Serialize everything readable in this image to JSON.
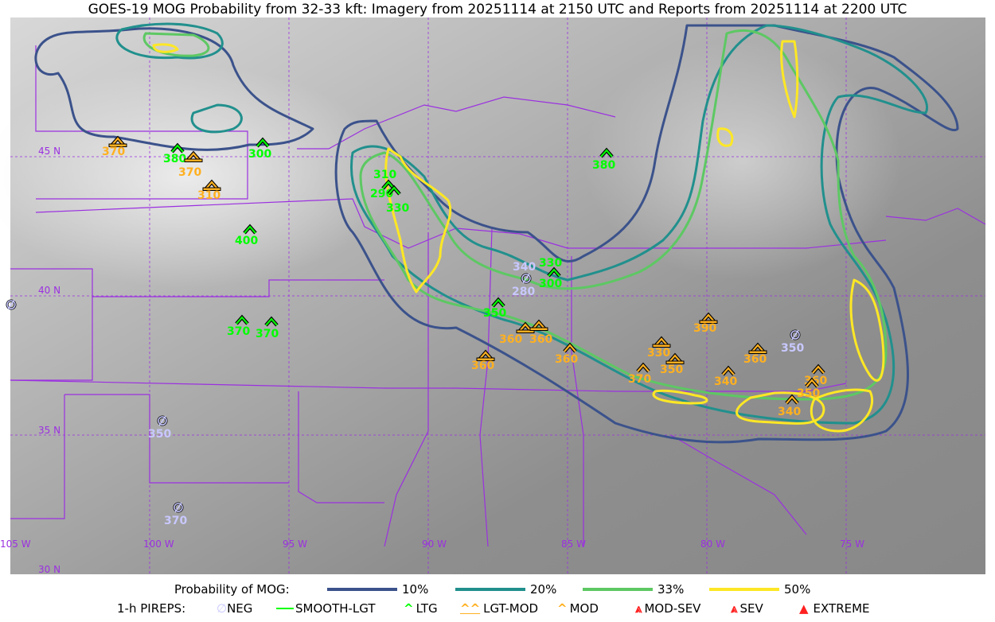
{
  "title": "GOES-19 MOG Probability from 32-33 kft: Imagery from 20251114 at 2150 UTC and Reports from 20251114 at 2200 UTC",
  "map": {
    "lat_labels": [
      "45 N",
      "40 N",
      "35 N",
      "30 N"
    ],
    "lon_labels": [
      "105 W",
      "100 W",
      "95 W",
      "90 W",
      "85 W",
      "80 W",
      "75 W"
    ],
    "graticule_color": "#9b30e0",
    "border_color": "#9b30e0"
  },
  "probability_legend": {
    "label": "Probability of MOG:",
    "levels": [
      {
        "label": "10%",
        "color": "#3b528b"
      },
      {
        "label": "20%",
        "color": "#21908d"
      },
      {
        "label": "33%",
        "color": "#5dc863"
      },
      {
        "label": "50%",
        "color": "#fde725"
      }
    ]
  },
  "pirep_legend": {
    "label": "1-h PIREPS:",
    "items": [
      {
        "label": "NEG",
        "icon": "neg-icon",
        "color": "#c8c8ff"
      },
      {
        "label": "SMOOTH-LGT",
        "icon": "line-icon",
        "color": "#00ff00"
      },
      {
        "label": "LTG",
        "icon": "chevron-icon",
        "color": "#00ff00"
      },
      {
        "label": "LGT-MOD",
        "icon": "lgt-mod-icon",
        "color": "#ffb020"
      },
      {
        "label": "MOD",
        "icon": "chevron-icon",
        "color": "#ffb020"
      },
      {
        "label": "MOD-SEV",
        "icon": "mod-sev-icon",
        "color": "#ff2020"
      },
      {
        "label": "SEV",
        "icon": "sev-icon",
        "color": "#ff2020"
      },
      {
        "label": "EXTREME",
        "icon": "triangle-icon",
        "color": "#ff2020"
      }
    ]
  },
  "reports": [
    {
      "type": "LGT-MOD",
      "labels": [
        "370"
      ]
    },
    {
      "type": "LTG",
      "labels": [
        "380"
      ]
    },
    {
      "type": "LGT-MOD",
      "labels": [
        "370"
      ]
    },
    {
      "type": "LTG",
      "labels": [
        "300"
      ]
    },
    {
      "type": "LGT-MOD",
      "labels": [
        "310"
      ]
    },
    {
      "type": "LTG",
      "labels": [
        "400"
      ]
    },
    {
      "type": "LTG",
      "labels": [
        "310",
        "290"
      ]
    },
    {
      "type": "LTG",
      "labels": [
        "330"
      ]
    },
    {
      "type": "LTG",
      "labels": [
        "380"
      ]
    },
    {
      "type": "NEG",
      "labels": [
        "340",
        "280"
      ]
    },
    {
      "type": "LTG",
      "labels": [
        "330",
        "300"
      ]
    },
    {
      "type": "LTG",
      "labels": [
        "350"
      ]
    },
    {
      "type": "LGT-MOD",
      "labels": [
        "360"
      ]
    },
    {
      "type": "LGT-MOD",
      "labels": [
        "360"
      ]
    },
    {
      "type": "LGT-MOD",
      "labels": [
        "360"
      ]
    },
    {
      "type": "MOD",
      "labels": [
        "360"
      ]
    },
    {
      "type": "LTG",
      "labels": [
        "370"
      ]
    },
    {
      "type": "LTG",
      "labels": [
        "370"
      ]
    },
    {
      "type": "NEG",
      "labels": []
    },
    {
      "type": "NEG",
      "labels": [
        "350"
      ]
    },
    {
      "type": "NEG",
      "labels": [
        "370"
      ]
    },
    {
      "type": "LGT-MOD",
      "labels": [
        "390"
      ]
    },
    {
      "type": "LGT-MOD",
      "labels": [
        "330"
      ]
    },
    {
      "type": "LGT-MOD",
      "labels": [
        "350"
      ]
    },
    {
      "type": "MOD",
      "labels": [
        "370"
      ]
    },
    {
      "type": "MOD",
      "labels": [
        "340"
      ]
    },
    {
      "type": "LGT-MOD",
      "labels": [
        "360"
      ]
    },
    {
      "type": "NEG",
      "labels": [
        "350"
      ]
    },
    {
      "type": "MOD",
      "labels": [
        "360"
      ]
    },
    {
      "type": "MOD",
      "labels": [
        "350"
      ]
    },
    {
      "type": "MOD",
      "labels": [
        "340"
      ]
    }
  ]
}
